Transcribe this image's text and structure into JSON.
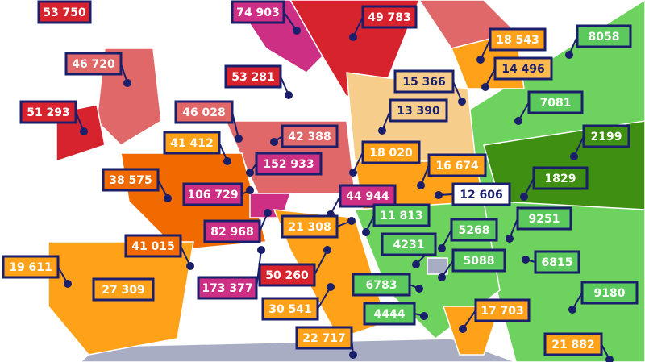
{
  "labels": [
    "53 750",
    "74 903",
    "49 783",
    "18 543",
    "8058",
    "46 720",
    "14 496",
    "53 281",
    "15 366",
    "7081",
    "51 293",
    "46 028",
    "13 390",
    "2199",
    "42 388",
    "41 412",
    "18 020",
    "152 933",
    "16 674",
    "38 575",
    "1829",
    "106 729",
    "44 944",
    "12 606",
    "82 968",
    "21 308",
    "11 813",
    "5268",
    "9251",
    "4231",
    "19 611",
    "41 015",
    "27 309",
    "173 377",
    "50 260",
    "5088",
    "6815",
    "6783",
    "30 541",
    "4444",
    "9180",
    "17 703",
    "22 717",
    "21 882"
  ]
}
